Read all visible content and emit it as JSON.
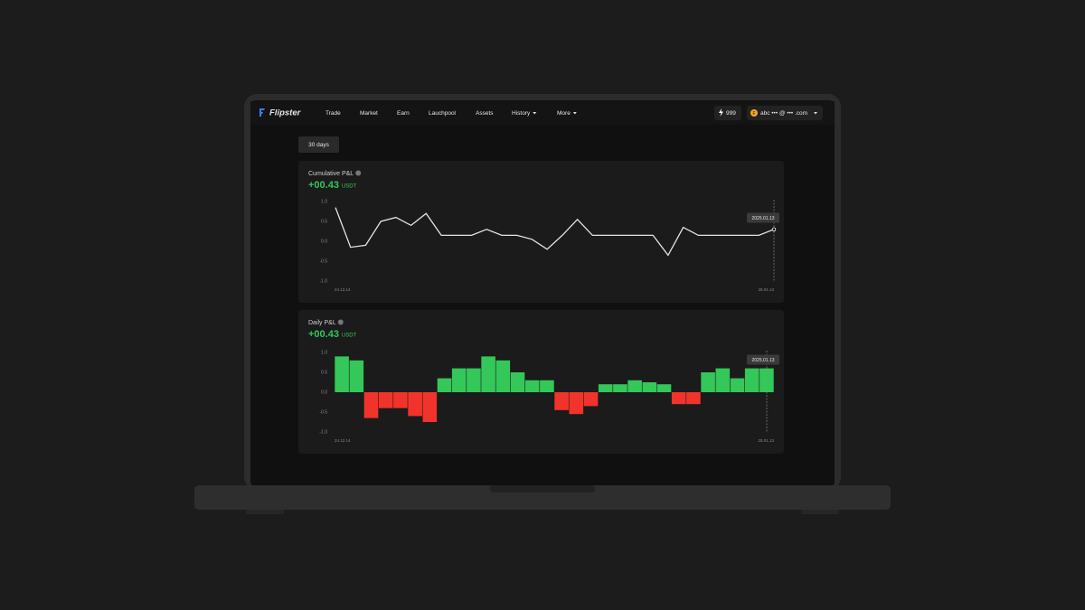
{
  "nav": {
    "logo": "Flipster",
    "items": [
      "Trade",
      "Market",
      "Earn",
      "Lauchpool",
      "Assets",
      "History",
      "More"
    ],
    "points": "999",
    "avatar": "F",
    "account": "abc ••• @ ••• .com"
  },
  "period": "30 days",
  "chart_data": [
    {
      "type": "line",
      "title": "Cumulative P&L",
      "value": "+00.43",
      "unit": "USDT",
      "color": "#e4e4e4",
      "categories": [
        "24.12.14",
        null,
        null,
        null,
        null,
        null,
        null,
        null,
        null,
        null,
        null,
        null,
        null,
        null,
        null,
        null,
        null,
        null,
        null,
        null,
        null,
        null,
        null,
        null,
        null,
        null,
        null,
        null,
        null,
        "25.01.13"
      ],
      "values": [
        0.85,
        -0.15,
        -0.1,
        0.5,
        0.6,
        0.4,
        0.7,
        0.15,
        0.15,
        0.15,
        0.3,
        0.15,
        0.15,
        0.05,
        -0.2,
        0.15,
        0.55,
        0.15,
        0.15,
        0.15,
        0.15,
        0.15,
        -0.35,
        0.35,
        0.15,
        0.15,
        0.15,
        0.15,
        0.15,
        0.3
      ],
      "ylim": [
        -1,
        1
      ],
      "yticks": [
        {
          "value": 1,
          "label": "1.0"
        },
        {
          "value": 0.5,
          "label": "0.5"
        },
        {
          "value": 0,
          "label": "0.0"
        },
        {
          "value": -0.5,
          "label": "-0.5"
        },
        {
          "value": -1,
          "label": "-1.0"
        }
      ],
      "tooltip": "2025.01.13"
    },
    {
      "type": "bar",
      "title": "Daily P&L",
      "value": "+00.43",
      "unit": "USDT",
      "positive_color": "#34c759",
      "negative_color": "#f2332b",
      "categories": [
        "24.12.14",
        null,
        null,
        null,
        null,
        null,
        null,
        null,
        null,
        null,
        null,
        null,
        null,
        null,
        null,
        null,
        null,
        null,
        null,
        null,
        null,
        null,
        null,
        null,
        null,
        null,
        null,
        null,
        null,
        "25.01.13"
      ],
      "values": [
        0.9,
        0.8,
        -0.65,
        -0.4,
        -0.4,
        -0.6,
        -0.75,
        0.35,
        0.6,
        0.6,
        0.9,
        0.8,
        0.5,
        0.3,
        0.3,
        -0.45,
        -0.55,
        -0.35,
        0.2,
        0.2,
        0.3,
        0.25,
        0.2,
        -0.3,
        -0.3,
        0.5,
        0.6,
        0.35,
        0.6,
        0.6
      ],
      "ylim": [
        -1,
        1
      ],
      "yticks": [
        {
          "value": 1,
          "label": "1.0"
        },
        {
          "value": 0.5,
          "label": "0.5"
        },
        {
          "value": 0,
          "label": "0.0"
        },
        {
          "value": -0.5,
          "label": "-0.5"
        },
        {
          "value": -1,
          "label": "-1.0"
        }
      ],
      "tooltip": "2025.01.13"
    }
  ]
}
